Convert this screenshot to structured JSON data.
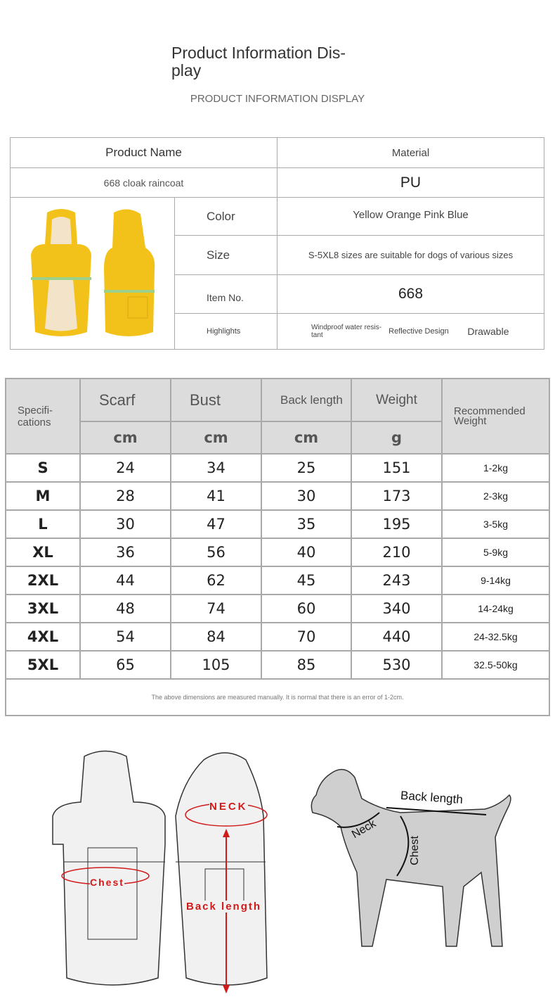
{
  "header": {
    "title": "Product Information Dis-\nplay",
    "subtitle": "PRODUCT INFORMATION DISPLAY"
  },
  "info": {
    "product_name_label": "Product Name",
    "material_label": "Material",
    "product_name": "668 cloak raincoat",
    "material": "PU",
    "color_label": "Color",
    "color": "Yellow Orange Pink Blue",
    "size_label": "Size",
    "size": "S-5XL8 sizes are suitable for dogs of various sizes",
    "item_label": "Item No.",
    "item": "668",
    "highlights_label": "Highlights",
    "highlights": [
      "Windproof water resis-tant",
      "Reflective Design",
      "Drawable"
    ],
    "product_color": "#f2c21b"
  },
  "spec": {
    "headers": [
      "Specifi-cations",
      "Scarf",
      "Bust",
      "Back length",
      "Weight",
      "Recommended Weight"
    ],
    "units": [
      "cm",
      "cm",
      "cm",
      "g"
    ],
    "rows": [
      [
        "S",
        "24",
        "34",
        "25",
        "151",
        "1-2kg"
      ],
      [
        "M",
        "28",
        "41",
        "30",
        "173",
        "2-3kg"
      ],
      [
        "L",
        "30",
        "47",
        "35",
        "195",
        "3-5kg"
      ],
      [
        "XL",
        "36",
        "56",
        "40",
        "210",
        "5-9kg"
      ],
      [
        "2XL",
        "44",
        "62",
        "45",
        "243",
        "9-14kg"
      ],
      [
        "3XL",
        "48",
        "74",
        "60",
        "340",
        "14-24kg"
      ],
      [
        "4XL",
        "54",
        "84",
        "70",
        "440",
        "24-32.5kg"
      ],
      [
        "5XL",
        "65",
        "105",
        "85",
        "530",
        "32.5-50kg"
      ]
    ],
    "note": "The above dimensions are measured manually. It is normal that there is an error of 1-2cm."
  },
  "diagram": {
    "neck": "NECK",
    "chest": "Chest",
    "back_length": "Back length",
    "dog_back": "Back length",
    "dog_neck": "Neck",
    "dog_chest": "Chest",
    "accent": "#d11a1a"
  }
}
